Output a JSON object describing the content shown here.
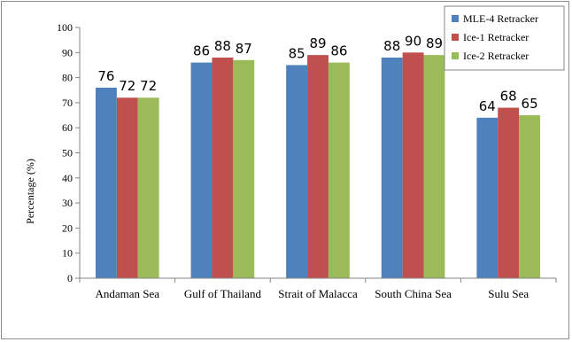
{
  "chart_data": {
    "type": "bar",
    "ylabel": "Percentage (%)",
    "xlabel": "",
    "ylim": [
      0,
      100
    ],
    "yticks": [
      0,
      10,
      20,
      30,
      40,
      50,
      60,
      70,
      80,
      90,
      100
    ],
    "categories": [
      "Andaman Sea",
      "Gulf of Thailand",
      "Strait of Malacca",
      "South China Sea",
      "Sulu Sea"
    ],
    "series": [
      {
        "name": "MLE-4 Retracker",
        "color": "#4f81bd",
        "values": [
          76,
          86,
          85,
          88,
          64
        ]
      },
      {
        "name": "Ice-1 Retracker",
        "color": "#c0504d",
        "values": [
          72,
          88,
          89,
          90,
          68
        ]
      },
      {
        "name": "Ice-2 Retracker",
        "color": "#9bbb59",
        "values": [
          72,
          87,
          86,
          89,
          65
        ]
      }
    ],
    "legend_position": "top-right",
    "grid": false
  }
}
